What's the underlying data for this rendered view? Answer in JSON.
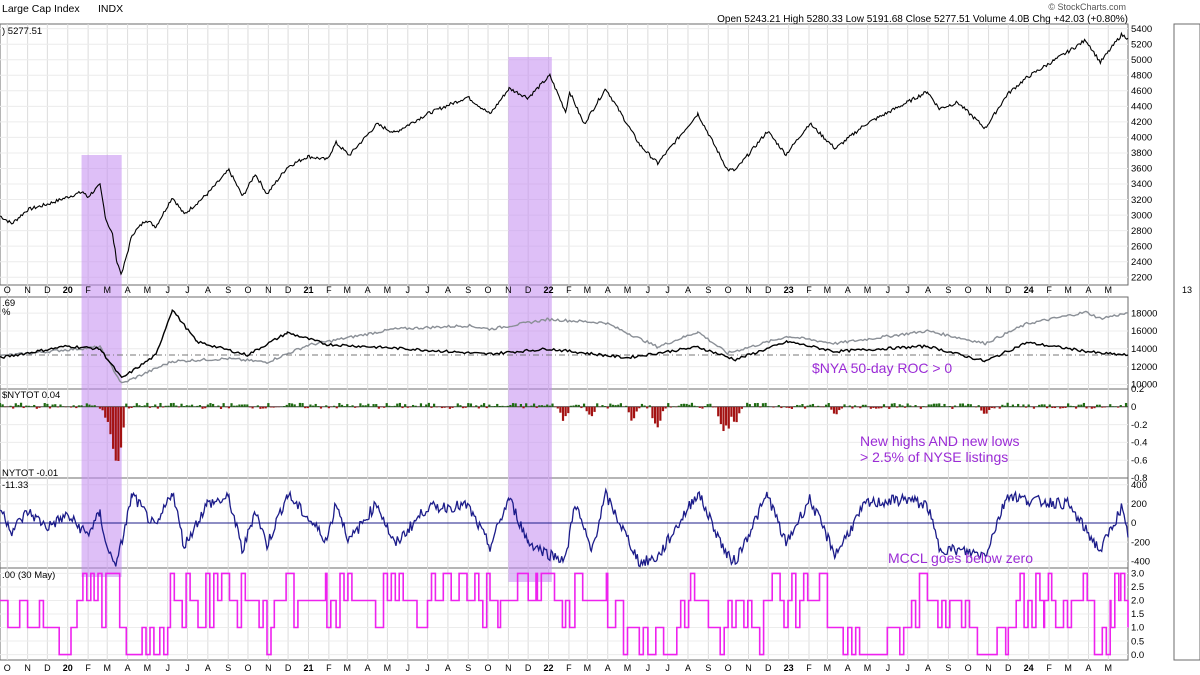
{
  "header": {
    "title": "Large Cap Index",
    "exchange": "INDX",
    "quote": "Open 5243.21  High 5280.33  Low 5191.68  Close 5277.51  Volume 4.0B  Chg +42.03 (+0.80%)",
    "copyright": "© StockCharts.com",
    "last_value": ") 5277.51"
  },
  "colors": {
    "price": "#000000",
    "highlight": "#c28bf0",
    "nya": "#000000",
    "reference": "#8a8f96",
    "positive_bar": "#1e6b12",
    "negative_bar": "#a31212",
    "mccl": "#1c1c8a",
    "composite": "#ee22ee",
    "annotation": "#9b2cd6",
    "grid": "#dcdcdc"
  },
  "x_axis": {
    "labels": [
      "O",
      "N",
      "D",
      "20",
      "F",
      "M",
      "A",
      "M",
      "J",
      "J",
      "A",
      "S",
      "O",
      "N",
      "D",
      "21",
      "F",
      "M",
      "A",
      "M",
      "J",
      "J",
      "A",
      "S",
      "O",
      "N",
      "D",
      "22",
      "F",
      "M",
      "A",
      "M",
      "J",
      "J",
      "A",
      "S",
      "O",
      "N",
      "D",
      "23",
      "F",
      "M",
      "A",
      "M",
      "J",
      "J",
      "A",
      "S",
      "O",
      "N",
      "D",
      "24",
      "F",
      "M",
      "A",
      "M"
    ],
    "year_labels": [
      "20",
      "21",
      "22",
      "23",
      "24"
    ],
    "side_label": "13"
  },
  "panels": {
    "nya": {
      "legend": ".69",
      "legend2": "%",
      "annotation": "$NYA 50-day ROC > 0"
    },
    "hilo": {
      "legend": "$NYTOT 0.04",
      "annotation_line1": "New highs AND new lows",
      "annotation_line2": "> 2.5% of NYSE listings"
    },
    "mccl": {
      "legend": "NYTOT -0.01",
      "legend2": "-11.33",
      "annotation": "MCCL goes below zero"
    },
    "composite": {
      "legend": ".00 (30 May)"
    }
  },
  "chart_data": [
    {
      "type": "line",
      "name": "price",
      "x_range": [
        "2019-09-20",
        "2024-05-31"
      ],
      "ylim": [
        2100,
        5460
      ],
      "yticks": [
        "2200",
        "2400",
        "2600",
        "2800",
        "3000",
        "3200",
        "3400",
        "3600",
        "3800",
        "4000",
        "4200",
        "4400",
        "4600",
        "4800",
        "5000",
        "5200",
        "5400"
      ],
      "points": [
        [
          "2019-09-20",
          2990
        ],
        [
          "2019-10-08",
          2890
        ],
        [
          "2019-11-01",
          3070
        ],
        [
          "2019-12-01",
          3140
        ],
        [
          "2019-12-31",
          3230
        ],
        [
          "2020-01-24",
          3300
        ],
        [
          "2020-01-31",
          3230
        ],
        [
          "2020-02-19",
          3386
        ],
        [
          "2020-02-28",
          2950
        ],
        [
          "2020-03-09",
          2750
        ],
        [
          "2020-03-16",
          2390
        ],
        [
          "2020-03-23",
          2237
        ],
        [
          "2020-04-08",
          2750
        ],
        [
          "2020-04-29",
          2940
        ],
        [
          "2020-05-14",
          2850
        ],
        [
          "2020-06-08",
          3230
        ],
        [
          "2020-06-26",
          3010
        ],
        [
          "2020-07-31",
          3270
        ],
        [
          "2020-09-02",
          3580
        ],
        [
          "2020-09-23",
          3240
        ],
        [
          "2020-10-12",
          3530
        ],
        [
          "2020-10-30",
          3270
        ],
        [
          "2020-11-30",
          3620
        ],
        [
          "2020-12-31",
          3756
        ],
        [
          "2021-01-29",
          3714
        ],
        [
          "2021-02-12",
          3930
        ],
        [
          "2021-03-04",
          3770
        ],
        [
          "2021-04-15",
          4170
        ],
        [
          "2021-05-12",
          4060
        ],
        [
          "2021-06-30",
          4300
        ],
        [
          "2021-08-31",
          4520
        ],
        [
          "2021-10-04",
          4300
        ],
        [
          "2021-11-02",
          4630
        ],
        [
          "2021-12-01",
          4510
        ],
        [
          "2022-01-03",
          4796
        ],
        [
          "2022-01-27",
          4330
        ],
        [
          "2022-02-02",
          4590
        ],
        [
          "2022-02-24",
          4170
        ],
        [
          "2022-03-29",
          4630
        ],
        [
          "2022-05-20",
          3900
        ],
        [
          "2022-06-16",
          3666
        ],
        [
          "2022-08-16",
          4305
        ],
        [
          "2022-09-30",
          3585
        ],
        [
          "2022-10-12",
          3577
        ],
        [
          "2022-11-30",
          4080
        ],
        [
          "2022-12-28",
          3780
        ],
        [
          "2023-02-02",
          4180
        ],
        [
          "2023-03-13",
          3855
        ],
        [
          "2023-04-28",
          4170
        ],
        [
          "2023-06-30",
          4450
        ],
        [
          "2023-07-31",
          4590
        ],
        [
          "2023-08-18",
          4370
        ],
        [
          "2023-09-15",
          4450
        ],
        [
          "2023-10-27",
          4117
        ],
        [
          "2023-11-30",
          4560
        ],
        [
          "2023-12-29",
          4770
        ],
        [
          "2024-02-29",
          5100
        ],
        [
          "2024-03-28",
          5254
        ],
        [
          "2024-04-19",
          4967
        ],
        [
          "2024-05-21",
          5321
        ],
        [
          "2024-05-31",
          5277
        ]
      ]
    },
    {
      "type": "line",
      "name": "nya",
      "ylim": [
        9500,
        19800
      ],
      "yticks": [
        "10000",
        "12000",
        "14000",
        "16000",
        "18000"
      ],
      "series": [
        {
          "name": "reference",
          "points": [
            [
              "2019-09-20",
              13200
            ],
            [
              "2019-12-31",
              13900
            ],
            [
              "2020-02-19",
              14200
            ],
            [
              "2020-03-23",
              10100
            ],
            [
              "2020-06-08",
              12600
            ],
            [
              "2020-08-31",
              12900
            ],
            [
              "2020-10-30",
              12500
            ],
            [
              "2020-12-31",
              14400
            ],
            [
              "2021-05-10",
              16200
            ],
            [
              "2021-08-31",
              16600
            ],
            [
              "2021-10-04",
              16200
            ],
            [
              "2021-12-31",
              17300
            ],
            [
              "2022-03-29",
              16900
            ],
            [
              "2022-06-16",
              14200
            ],
            [
              "2022-08-16",
              15900
            ],
            [
              "2022-09-30",
              13500
            ],
            [
              "2022-12-31",
              15400
            ],
            [
              "2023-03-13",
              14600
            ],
            [
              "2023-07-31",
              16000
            ],
            [
              "2023-10-27",
              14600
            ],
            [
              "2023-12-29",
              16800
            ],
            [
              "2024-03-28",
              18100
            ],
            [
              "2024-04-19",
              17400
            ],
            [
              "2024-05-31",
              18000
            ]
          ]
        },
        {
          "name": "roc",
          "points": [
            [
              "2019-09-20",
              13000
            ],
            [
              "2019-12-31",
              14300
            ],
            [
              "2020-02-19",
              14000
            ],
            [
              "2020-03-23",
              10700
            ],
            [
              "2020-05-14",
              13300
            ],
            [
              "2020-06-08",
              18400
            ],
            [
              "2020-07-15",
              14800
            ],
            [
              "2020-09-30",
              13300
            ],
            [
              "2020-11-30",
              15800
            ],
            [
              "2021-01-29",
              14500
            ],
            [
              "2021-05-31",
              14000
            ],
            [
              "2021-09-30",
              13400
            ],
            [
              "2021-12-31",
              14000
            ],
            [
              "2022-04-30",
              13000
            ],
            [
              "2022-08-16",
              14200
            ],
            [
              "2022-10-12",
              12800
            ],
            [
              "2022-12-31",
              14800
            ],
            [
              "2023-03-13",
              13700
            ],
            [
              "2023-07-31",
              14300
            ],
            [
              "2023-10-27",
              12600
            ],
            [
              "2023-12-29",
              14700
            ],
            [
              "2024-04-19",
              13500
            ],
            [
              "2024-05-31",
              13300
            ]
          ]
        }
      ],
      "reference_level": 13300
    },
    {
      "type": "bar",
      "name": "hilo",
      "ylim": [
        -0.8,
        0.2
      ],
      "yticks": [
        "0.2",
        "0",
        "-0.2",
        "-0.4",
        "-0.6",
        "-0.8"
      ],
      "deep_negatives": [
        [
          "2020-03-01",
          -0.2
        ],
        [
          "2020-03-09",
          -0.45
        ],
        [
          "2020-03-12",
          -0.62
        ],
        [
          "2020-03-16",
          -0.75
        ],
        [
          "2020-03-20",
          -0.55
        ],
        [
          "2022-01-24",
          -0.16
        ],
        [
          "2022-03-07",
          -0.12
        ],
        [
          "2022-05-09",
          -0.18
        ],
        [
          "2022-06-13",
          -0.22
        ],
        [
          "2022-06-16",
          -0.25
        ],
        [
          "2022-09-23",
          -0.3
        ],
        [
          "2022-09-30",
          -0.28
        ],
        [
          "2022-10-12",
          -0.2
        ],
        [
          "2023-03-13",
          -0.1
        ],
        [
          "2023-10-27",
          -0.12
        ]
      ]
    },
    {
      "type": "line",
      "name": "mccl",
      "ylim": [
        -470,
        470
      ],
      "yticks": [
        "400",
        "200",
        "0",
        "-200",
        "-400"
      ],
      "points": [
        [
          "2019-09-20",
          160
        ],
        [
          "2019-10-08",
          -80
        ],
        [
          "2019-11-01",
          120
        ],
        [
          "2019-12-01",
          -40
        ],
        [
          "2019-12-31",
          80
        ],
        [
          "2020-01-31",
          -120
        ],
        [
          "2020-02-19",
          100
        ],
        [
          "2020-03-02",
          -300
        ],
        [
          "2020-03-16",
          -420
        ],
        [
          "2020-04-08",
          300
        ],
        [
          "2020-05-14",
          -60
        ],
        [
          "2020-06-08",
          340
        ],
        [
          "2020-06-26",
          -240
        ],
        [
          "2020-07-31",
          200
        ],
        [
          "2020-09-02",
          260
        ],
        [
          "2020-09-23",
          -300
        ],
        [
          "2020-10-12",
          140
        ],
        [
          "2020-10-30",
          -230
        ],
        [
          "2020-11-30",
          300
        ],
        [
          "2021-01-29",
          -180
        ],
        [
          "2021-02-12",
          220
        ],
        [
          "2021-03-04",
          -190
        ],
        [
          "2021-04-15",
          210
        ],
        [
          "2021-05-12",
          -230
        ],
        [
          "2021-06-30",
          160
        ],
        [
          "2021-08-31",
          180
        ],
        [
          "2021-10-04",
          -250
        ],
        [
          "2021-11-02",
          260
        ],
        [
          "2021-12-01",
          -200
        ],
        [
          "2022-01-03",
          -330
        ],
        [
          "2022-01-27",
          -380
        ],
        [
          "2022-02-10",
          220
        ],
        [
          "2022-03-07",
          -300
        ],
        [
          "2022-03-29",
          290
        ],
        [
          "2022-05-20",
          -420
        ],
        [
          "2022-06-16",
          -360
        ],
        [
          "2022-08-16",
          320
        ],
        [
          "2022-09-30",
          -350
        ],
        [
          "2022-10-12",
          -400
        ],
        [
          "2022-11-30",
          300
        ],
        [
          "2022-12-28",
          -220
        ],
        [
          "2023-02-02",
          250
        ],
        [
          "2023-03-13",
          -330
        ],
        [
          "2023-04-28",
          200
        ],
        [
          "2023-06-30",
          250
        ],
        [
          "2023-07-31",
          180
        ],
        [
          "2023-08-18",
          -260
        ],
        [
          "2023-10-27",
          -330
        ],
        [
          "2023-11-30",
          300
        ],
        [
          "2023-12-29",
          240
        ],
        [
          "2024-02-29",
          200
        ],
        [
          "2024-04-19",
          -290
        ],
        [
          "2024-05-21",
          160
        ],
        [
          "2024-05-31",
          -150
        ]
      ]
    },
    {
      "type": "line",
      "name": "composite",
      "ylim": [
        -0.2,
        3.2
      ],
      "yticks": [
        "3.0",
        "2.5",
        "2.0",
        "1.5",
        "1.0",
        "0.5",
        "0.0"
      ],
      "points": [
        [
          "2019-09-20",
          1
        ],
        [
          "2020-01-15",
          2
        ],
        [
          "2020-01-24",
          3
        ],
        [
          "2020-02-10",
          2
        ],
        [
          "2020-03-05",
          3
        ],
        [
          "2020-03-20",
          1
        ],
        [
          "2020-03-30",
          0
        ],
        [
          "2020-05-20",
          1
        ],
        [
          "2020-06-05",
          2
        ],
        [
          "2020-10-12",
          1
        ],
        [
          "2020-11-10",
          2
        ],
        [
          "2021-01-29",
          1
        ],
        [
          "2021-02-12",
          2
        ],
        [
          "2021-06-15",
          1
        ],
        [
          "2021-07-01",
          2
        ],
        [
          "2021-10-04",
          1
        ],
        [
          "2021-10-20",
          2
        ],
        [
          "2021-11-15",
          3
        ],
        [
          "2021-12-01",
          2
        ],
        [
          "2021-12-15",
          3
        ],
        [
          "2022-01-10",
          2
        ],
        [
          "2022-01-27",
          1
        ],
        [
          "2022-02-10",
          2
        ],
        [
          "2022-04-01",
          1
        ],
        [
          "2022-06-01",
          0
        ],
        [
          "2022-07-15",
          1
        ],
        [
          "2022-08-05",
          2
        ],
        [
          "2022-09-01",
          1
        ],
        [
          "2022-12-01",
          2
        ],
        [
          "2023-03-01",
          1
        ],
        [
          "2023-04-01",
          0
        ],
        [
          "2023-06-01",
          1
        ],
        [
          "2023-07-01",
          2
        ],
        [
          "2023-08-10",
          1
        ],
        [
          "2023-10-15",
          0
        ],
        [
          "2023-11-15",
          1
        ],
        [
          "2023-12-01",
          2
        ],
        [
          "2024-01-25",
          3
        ],
        [
          "2024-02-05",
          2
        ],
        [
          "2024-04-10",
          1
        ],
        [
          "2024-05-05",
          2
        ],
        [
          "2024-05-20",
          3
        ],
        [
          "2024-05-31",
          1
        ]
      ]
    }
  ],
  "highlights": [
    {
      "start": "2020-01-22",
      "end": "2020-03-23"
    },
    {
      "start": "2021-11-01",
      "end": "2022-01-06"
    }
  ]
}
